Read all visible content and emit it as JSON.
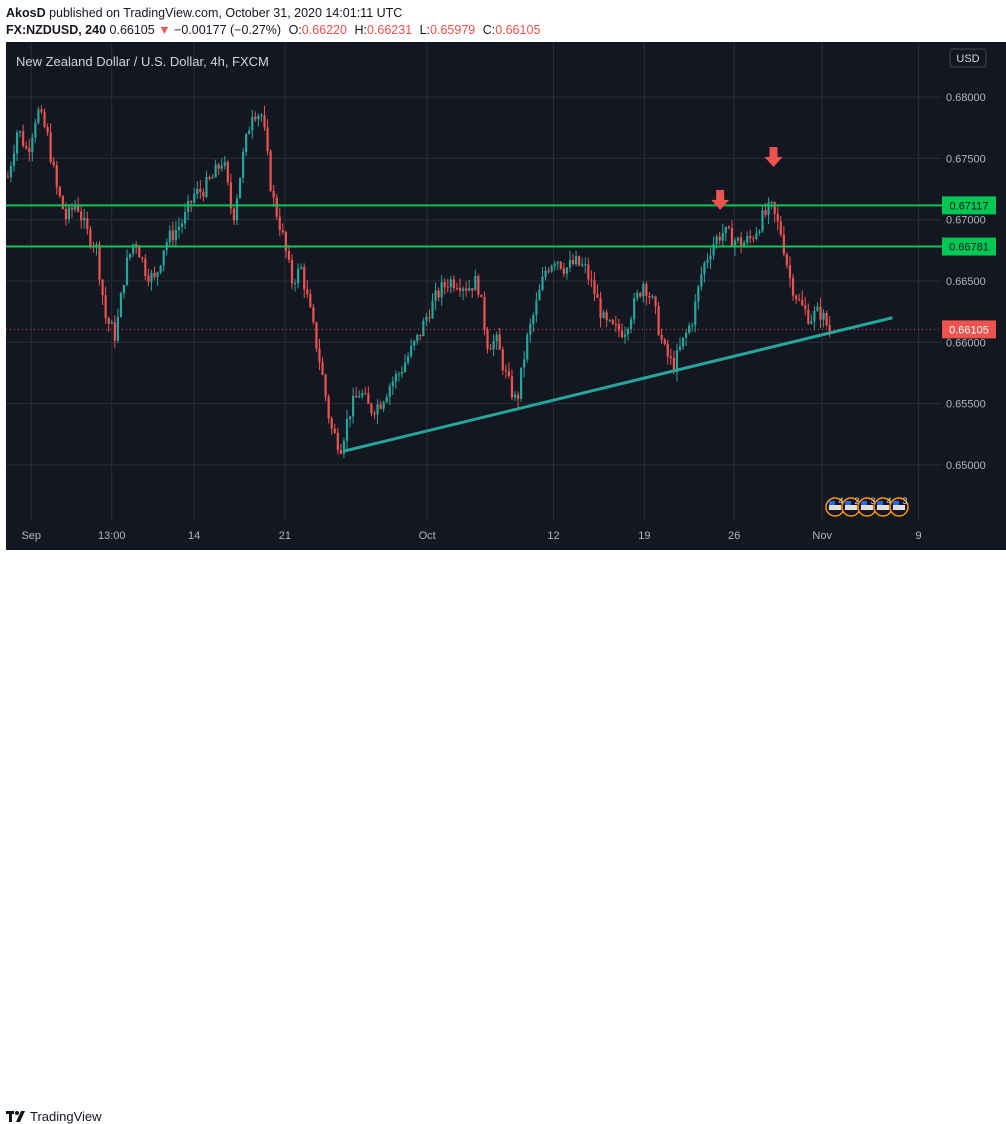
{
  "header": {
    "author": "AkosD",
    "published_text": "published on TradingView.com, October 31, 2020 14:01:11 UTC",
    "symbol": "FX:NZDUSD, 240",
    "last": "0.66105",
    "change_arrow": "▼",
    "change": "−0.00177 (−0.27%)",
    "o_label": "O:",
    "o_value": "0.66220",
    "h_label": "H:",
    "h_value": "0.66231",
    "l_label": "L:",
    "l_value": "0.65979",
    "c_label": "C:",
    "c_value": "0.66105"
  },
  "chart_data": {
    "type": "candlestick",
    "title": "New Zealand Dollar / U.S. Dollar, 4h, FXCM",
    "currency": "USD",
    "ylim": [
      0.6455,
      0.6845
    ],
    "y_ticks": [
      "0.68000",
      "0.67500",
      "0.67000",
      "0.66500",
      "0.66000",
      "0.65500",
      "0.65000"
    ],
    "x_ticks": [
      "Sep",
      "13:00",
      "14",
      "21",
      "Oct",
      "12",
      "19",
      "26",
      "Nov",
      "9"
    ],
    "grid": true,
    "path": [
      0.6735,
      0.6775,
      0.6755,
      0.679,
      0.677,
      0.6725,
      0.67,
      0.6715,
      0.669,
      0.668,
      0.662,
      0.6605,
      0.666,
      0.6685,
      0.666,
      0.665,
      0.668,
      0.669,
      0.67,
      0.672,
      0.6725,
      0.6735,
      0.675,
      0.67,
      0.675,
      0.679,
      0.6785,
      0.672,
      0.669,
      0.665,
      0.666,
      0.662,
      0.658,
      0.653,
      0.6515,
      0.6545,
      0.656,
      0.6545,
      0.655,
      0.6565,
      0.6575,
      0.659,
      0.6605,
      0.6625,
      0.664,
      0.665,
      0.665,
      0.6645,
      0.665,
      0.66,
      0.66,
      0.657,
      0.655,
      0.66,
      0.663,
      0.666,
      0.667,
      0.666,
      0.6665,
      0.666,
      0.664,
      0.6615,
      0.661,
      0.661,
      0.663,
      0.665,
      0.663,
      0.6595,
      0.658,
      0.66,
      0.662,
      0.666,
      0.668,
      0.669,
      0.6685,
      0.668,
      0.6685,
      0.67,
      0.671,
      0.669,
      0.665,
      0.663,
      0.662,
      0.6625,
      0.661
    ],
    "levels": [
      {
        "value": 0.67117,
        "label": "0.67117",
        "color": "#00c853"
      },
      {
        "value": 0.66781,
        "label": "0.66781",
        "color": "#00c853"
      }
    ],
    "last_price": {
      "value": 0.66105,
      "label": "0.66105",
      "color": "#ef5350"
    },
    "trendline": {
      "start": {
        "x": 0.36,
        "y": 0.6511
      },
      "end": {
        "x": 0.947,
        "y": 0.662
      },
      "color": "#26a69a"
    },
    "arrows": [
      {
        "x": 0.763,
        "y": 0.6708,
        "color": "#ef5350"
      },
      {
        "x": 0.82,
        "y": 0.6743,
        "color": "#ef5350"
      }
    ],
    "colors": {
      "up": "#26a69a",
      "down": "#ef5350",
      "background": "#131722",
      "grid": "#2a2e39"
    },
    "event_badges": [
      "4",
      "2",
      "3",
      "4",
      "3"
    ]
  },
  "footer": {
    "brand": "TradingView"
  }
}
